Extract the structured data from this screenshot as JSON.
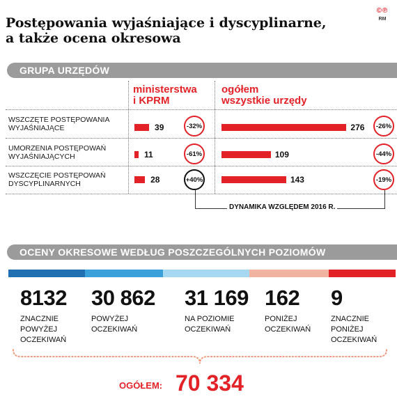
{
  "title_line1": "Postępowania wyjaśniające i dyscyplinarne,",
  "title_line2": "a także ocena okresowa",
  "logo": "©℗",
  "logo_sub": "RM",
  "section1": "GRUPA URZĘDÓW",
  "col1_line1": "ministerstwa",
  "col1_line2": "i KPRM",
  "col2_line1": "ogółem",
  "col2_line2": "wszystkie urzędy",
  "dyn_label": "DYNAMIKA WZGLĘDEM 2016 R.",
  "section2": "OCENY OKRESOWE WEDŁUG POSZCZEGÓLNYCH POZIOMÓW",
  "total_label": "OGÓŁEM:",
  "total_value": "70 334",
  "chart_data": [
    {
      "type": "bar",
      "categories": [
        [
          "WSZCZĘTE POSTĘPOWANIA",
          "WYJAŚNIAJĄCE"
        ],
        [
          "UMORZENIA POSTĘPOWAŃ",
          "WYJAŚNIAJĄCYCH"
        ],
        [
          "WSZCZĘCIE POSTĘPOWAŃ",
          "DYSCYPLINARNYCH"
        ]
      ],
      "series": [
        {
          "name": "ministerstwa i KPRM",
          "values": [
            39,
            11,
            28
          ],
          "labels": [
            "39",
            "11",
            "28"
          ],
          "dynamics": [
            "-32%",
            "-61%",
            "+40%"
          ],
          "dynamics_color": [
            "red",
            "red",
            "black"
          ]
        },
        {
          "name": "ogółem wszystkie urzędy",
          "values": [
            276,
            109,
            143
          ],
          "labels": [
            "276",
            "109",
            "143"
          ],
          "dynamics": [
            "-26%",
            "-44%",
            "-19%"
          ],
          "dynamics_color": [
            "red",
            "red",
            "red"
          ]
        }
      ]
    },
    {
      "type": "table",
      "categories": [
        "ZNACZNIE POWYŻEJ OCZEKIWAŃ",
        "POWYŻEJ OCZEKIWAŃ",
        "NA POZIOMIE OCZEKIWAŃ",
        "PONIŻEJ OCZEKIWAŃ",
        "ZNACZNIE PONIŻEJ OCZEKIWAŃ"
      ],
      "category_lines": [
        [
          "ZNACZNIE",
          "POWYŻEJ",
          "OCZEKIWAŃ"
        ],
        [
          "POWYŻEJ",
          "OCZEKIWAŃ"
        ],
        [
          "NA POZIOMIE",
          "OCZEKIWAŃ"
        ],
        [
          "PONIŻEJ",
          "OCZEKIWAŃ"
        ],
        [
          "ZNACZNIE",
          "PONIŻEJ",
          "OCZEKIWAŃ"
        ]
      ],
      "values": [
        8132,
        30862,
        31169,
        162,
        9
      ],
      "labels": [
        "8132",
        "30 862",
        "31 169",
        "162",
        "9"
      ],
      "colors": [
        "#1f6fb2",
        "#3aa0da",
        "#a6d8f1",
        "#f1b3a0",
        "#e32228"
      ],
      "total": 70334
    }
  ]
}
